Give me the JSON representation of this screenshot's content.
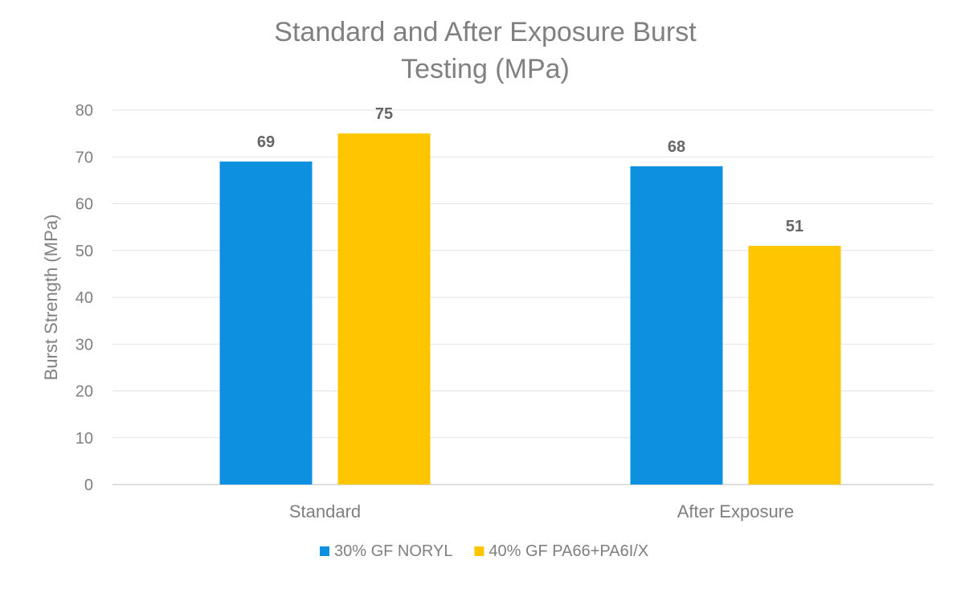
{
  "chart_data": {
    "type": "bar",
    "title_lines": [
      "Standard and After Exposure Burst",
      "Testing (MPa)"
    ],
    "xlabel": "",
    "ylabel": "Burst Strength (MPa)",
    "ylim": [
      0,
      80
    ],
    "yticks": [
      0,
      10,
      20,
      30,
      40,
      50,
      60,
      70,
      80
    ],
    "categories": [
      "Standard",
      "After Exposure"
    ],
    "series": [
      {
        "name": "30% GF NORYL",
        "values": [
          69,
          68
        ],
        "color": "#0e90e0"
      },
      {
        "name": "40% GF PA66+PA6I/X",
        "values": [
          75,
          51
        ],
        "color": "#ffc600"
      }
    ],
    "data_labels": [
      [
        "69",
        "68"
      ],
      [
        "75",
        "51"
      ]
    ],
    "grid": true,
    "legend_position": "bottom"
  }
}
